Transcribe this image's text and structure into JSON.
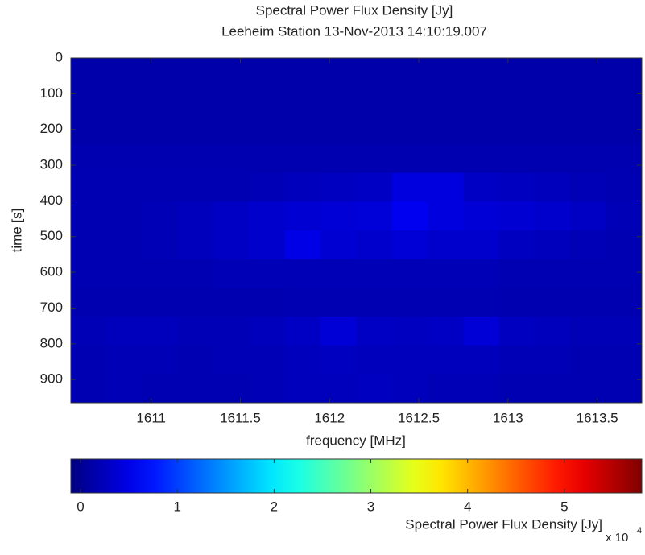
{
  "chart_data": {
    "type": "heatmap",
    "title": "Spectral Power Flux Density [Jy]",
    "subtitle": "Leeheim Station 13-Nov-2013 14:10:19.007",
    "x_label": "frequency [MHz]",
    "y_label": "time [s]",
    "xlim": [
      1610.55,
      1613.75
    ],
    "xticks": [
      1611,
      1611.5,
      1612,
      1612.5,
      1613,
      1613.5
    ],
    "ylim": [
      0,
      965
    ],
    "yticks": [
      0,
      100,
      200,
      300,
      400,
      500,
      600,
      700,
      800,
      900
    ],
    "y_reversed": true,
    "colormap": "jet",
    "clim": [
      -0.1,
      5.8
    ],
    "colorbar_ticks": [
      0,
      1,
      2,
      3,
      4,
      5
    ],
    "colorbar_label": "Spectral Power Flux Density [Jy]",
    "colorbar_multiplier": {
      "base": "x 10",
      "exponent": "4"
    },
    "z": [
      [
        0.15,
        0.15,
        0.15,
        0.15,
        0.15,
        0.15,
        0.15,
        0.15,
        0.15,
        0.15,
        0.15,
        0.15,
        0.15,
        0.15,
        0.15,
        0.15
      ],
      [
        0.15,
        0.15,
        0.15,
        0.15,
        0.15,
        0.15,
        0.15,
        0.15,
        0.15,
        0.15,
        0.15,
        0.15,
        0.15,
        0.15,
        0.15,
        0.15
      ],
      [
        0.15,
        0.15,
        0.15,
        0.15,
        0.15,
        0.15,
        0.15,
        0.15,
        0.15,
        0.15,
        0.15,
        0.15,
        0.15,
        0.15,
        0.15,
        0.15
      ],
      [
        0.18,
        0.18,
        0.18,
        0.18,
        0.18,
        0.18,
        0.18,
        0.18,
        0.18,
        0.18,
        0.18,
        0.18,
        0.18,
        0.18,
        0.18,
        0.18
      ],
      [
        0.2,
        0.2,
        0.2,
        0.2,
        0.2,
        0.22,
        0.25,
        0.28,
        0.3,
        0.45,
        0.45,
        0.3,
        0.28,
        0.25,
        0.22,
        0.2
      ],
      [
        0.2,
        0.2,
        0.22,
        0.25,
        0.3,
        0.35,
        0.38,
        0.4,
        0.42,
        0.55,
        0.45,
        0.4,
        0.38,
        0.35,
        0.3,
        0.22
      ],
      [
        0.2,
        0.2,
        0.22,
        0.25,
        0.3,
        0.35,
        0.5,
        0.38,
        0.35,
        0.4,
        0.35,
        0.35,
        0.28,
        0.25,
        0.22,
        0.2
      ],
      [
        0.2,
        0.2,
        0.2,
        0.2,
        0.22,
        0.22,
        0.22,
        0.22,
        0.22,
        0.22,
        0.22,
        0.22,
        0.2,
        0.2,
        0.2,
        0.2
      ],
      [
        0.18,
        0.18,
        0.18,
        0.18,
        0.18,
        0.18,
        0.2,
        0.2,
        0.2,
        0.2,
        0.2,
        0.2,
        0.18,
        0.18,
        0.18,
        0.18
      ],
      [
        0.22,
        0.25,
        0.25,
        0.22,
        0.22,
        0.25,
        0.3,
        0.4,
        0.3,
        0.28,
        0.3,
        0.4,
        0.28,
        0.25,
        0.22,
        0.22
      ],
      [
        0.2,
        0.22,
        0.22,
        0.2,
        0.22,
        0.22,
        0.25,
        0.28,
        0.25,
        0.25,
        0.25,
        0.25,
        0.22,
        0.22,
        0.2,
        0.2
      ],
      [
        0.2,
        0.22,
        0.2,
        0.2,
        0.2,
        0.22,
        0.25,
        0.25,
        0.28,
        0.25,
        0.22,
        0.22,
        0.2,
        0.2,
        0.2,
        0.2
      ]
    ]
  }
}
